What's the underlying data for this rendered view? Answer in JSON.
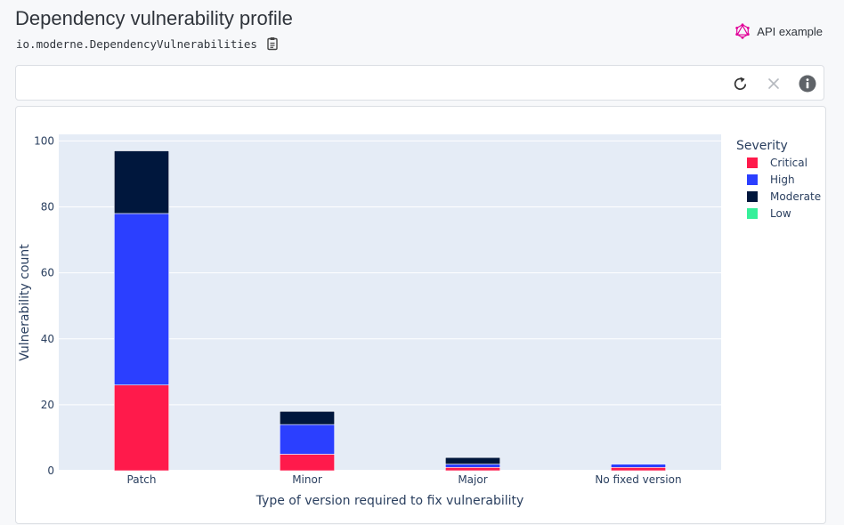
{
  "page": {
    "title": "Dependency vulnerability profile",
    "recipe_id": "io.moderne.DependencyVulnerabilities",
    "api_example_label": "API example"
  },
  "icons": {
    "copy": "clipboard-icon",
    "api": "graphql-icon",
    "reload": "reload-icon",
    "clear": "close-icon",
    "info": "info-icon"
  },
  "chart_data": {
    "type": "bar",
    "stacked": true,
    "categories": [
      "Patch",
      "Minor",
      "Major",
      "No fixed version"
    ],
    "series": [
      {
        "name": "Critical",
        "color": "#ff1a4b",
        "values": [
          26,
          5,
          1,
          1
        ]
      },
      {
        "name": "High",
        "color": "#2b3fff",
        "values": [
          52,
          9,
          1,
          1
        ]
      },
      {
        "name": "Moderate",
        "color": "#00173d",
        "values": [
          19,
          4,
          2,
          0
        ]
      },
      {
        "name": "Low",
        "color": "#36f09a",
        "values": [
          0,
          0,
          0,
          0
        ]
      }
    ],
    "xlabel": "Type of version required to fix vulnerability",
    "ylabel": "Vulnerability count",
    "ylim": [
      0,
      102
    ],
    "yticks": [
      0,
      20,
      40,
      60,
      80,
      100
    ],
    "legend_title": "Severity",
    "legend_position": "top-right",
    "grid": true
  }
}
